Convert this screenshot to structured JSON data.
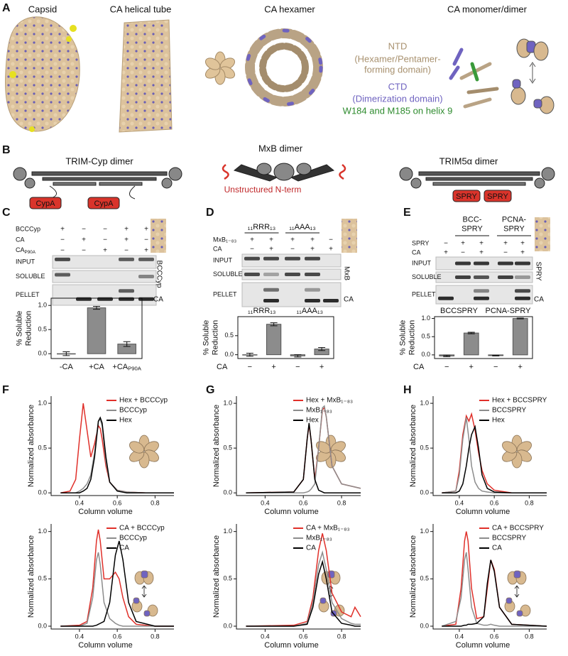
{
  "panels": [
    "A",
    "B",
    "C",
    "D",
    "E",
    "F",
    "G",
    "H"
  ],
  "panel_a": {
    "titles": [
      "Capsid",
      "CA helical tube",
      "CA hexamer",
      "CA monomer/dimer"
    ],
    "ntd": "NTD",
    "ntd_desc": [
      "(Hexamer/Pentamer-",
      "forming domain)"
    ],
    "ctd": "CTD",
    "ctd_desc": "(Dimerization domain)",
    "residues": "W184 and M185 on helix 9"
  },
  "panel_b": {
    "titles": [
      "TRIM-Cyp dimer",
      "MxB dimer",
      "TRIM5α dimer"
    ],
    "cyp_domains": [
      "CypA",
      "CypA"
    ],
    "spry_domains": [
      "SPRY",
      "SPRY"
    ],
    "nterm": "Unstructured N-term"
  },
  "gels": [
    {
      "rows": [
        {
          "label": "BCCCyp",
          "marks": [
            "+",
            "−",
            "−",
            "+",
            "+"
          ]
        },
        {
          "label": "CA",
          "marks": [
            "−",
            "+",
            "−",
            "+",
            "−"
          ]
        },
        {
          "label": {
            "text": "CA",
            "sub": "P90A"
          },
          "marks": [
            "−",
            "−",
            "+",
            "−",
            "+"
          ]
        }
      ],
      "lanes": [
        "INPUT",
        "SOLUBLE",
        "PELLET"
      ],
      "side_labels": [
        "BCCCyp",
        "CA"
      ]
    },
    {
      "headers": [
        "₁₁RRR₁₃",
        "₁₁AAA₁₃"
      ],
      "rows": [
        {
          "label": "MxB₁₋₈₃",
          "marks": [
            "+",
            "+",
            "+",
            "+",
            "−"
          ]
        },
        {
          "label": "CA",
          "marks": [
            "−",
            "+",
            "−",
            "+",
            "+"
          ]
        }
      ],
      "lanes": [
        "INPUT",
        "SOLUBLE",
        "PELLET"
      ],
      "side_labels": [
        "MxB",
        "CA"
      ]
    },
    {
      "headers": [
        [
          "BCC-",
          "SPRY"
        ],
        [
          "PCNA-",
          "SPRY"
        ]
      ],
      "rows": [
        {
          "label": "SPRY",
          "marks": [
            "−",
            "+",
            "+",
            "+",
            "+"
          ]
        },
        {
          "label": "CA",
          "marks": [
            "+",
            "−",
            "+",
            "−",
            "+"
          ]
        }
      ],
      "lanes": [
        "INPUT",
        "SOLUBLE",
        "PELLET"
      ],
      "side_labels": [
        "SPRY",
        "CA"
      ]
    }
  ],
  "chart_data": [
    {
      "type": "bar",
      "ylabel": [
        "% Soluble",
        "Reduction"
      ],
      "categories": [
        "-CA",
        "+CA",
        {
          "text": "+CA",
          "sub": "P90A"
        }
      ],
      "values": [
        0.0,
        0.95,
        0.2
      ],
      "errors": [
        0.04,
        0.03,
        0.05
      ],
      "color": "#8c8c8c",
      "ylim": [
        -0.1,
        1.15
      ],
      "yticks": [
        {
          "value": 0,
          "label": "0.0"
        },
        0.5,
        {
          "value": 1,
          "label": "1.0"
        }
      ]
    },
    {
      "type": "bar",
      "ylabel": [
        "% Soluble",
        "Reduction"
      ],
      "xlabel": "CA",
      "groups": [
        "₁₁RRR₁₃",
        "₁₁AAA₁₃"
      ],
      "categories": [
        "−",
        "+",
        "−",
        "+"
      ],
      "values": [
        0.0,
        0.8,
        -0.03,
        0.15
      ],
      "errors": [
        0.04,
        0.04,
        0.03,
        0.04
      ],
      "color": "#8c8c8c",
      "ylim": [
        -0.1,
        1.0
      ],
      "yticks": [
        {
          "value": 0,
          "label": "0.0"
        },
        0.5
      ]
    },
    {
      "type": "bar",
      "ylabel": [
        "% Soluble",
        "Reduction"
      ],
      "xlabel": "CA",
      "groups": [
        "BCCSPRY",
        "PCNA-SPRY"
      ],
      "categories": [
        "−",
        "+",
        "−",
        "+"
      ],
      "values": [
        -0.03,
        0.6,
        -0.02,
        1.0
      ],
      "errors": [
        0.02,
        0.02,
        0.01,
        0.01
      ],
      "color": "#8c8c8c",
      "ylim": [
        -0.1,
        1.05
      ],
      "yticks": [
        {
          "value": 0,
          "label": "0.0"
        },
        0.5,
        {
          "value": 1,
          "label": "1.0"
        }
      ]
    },
    {
      "type": "line",
      "xlabel": "Column volume",
      "ylabel": "Normalized absorbance",
      "legend": "upper-right",
      "xlim": [
        0.25,
        0.9
      ],
      "xticks": [
        0.4,
        0.6,
        0.8
      ],
      "ylim": [
        -0.03,
        1.08
      ],
      "yticks": [
        {
          "value": 0,
          "label": "0.0"
        },
        0.5,
        {
          "value": 1,
          "label": "1.0"
        }
      ],
      "x": [
        0.3,
        0.35,
        0.38,
        0.4,
        0.42,
        0.44,
        0.46,
        0.48,
        0.5,
        0.51,
        0.52,
        0.54,
        0.56,
        0.6,
        0.65,
        0.75,
        0.9
      ],
      "series": [
        {
          "name": "Hex + BCCCyp",
          "color": "#e0302a",
          "values": [
            0,
            0.02,
            0.15,
            0.6,
            1.0,
            0.7,
            0.4,
            0.55,
            0.75,
            0.72,
            0.6,
            0.3,
            0.12,
            0.03,
            0.01,
            0,
            0
          ]
        },
        {
          "name": "BCCCyp",
          "color": "#8c8c8c",
          "values": [
            0,
            0,
            0,
            0.02,
            0.05,
            0.1,
            0.2,
            0.45,
            0.8,
            0.82,
            0.75,
            0.35,
            0.12,
            0.03,
            0.01,
            0,
            0
          ]
        },
        {
          "name": "Hex",
          "color": "#000000",
          "values": [
            0,
            0,
            0,
            0,
            0.02,
            0.05,
            0.15,
            0.4,
            0.8,
            0.84,
            0.78,
            0.4,
            0.12,
            0.02,
            0,
            0,
            0
          ]
        }
      ]
    },
    {
      "type": "line",
      "xlabel": "Column volume",
      "ylabel": "Normalized absorbance",
      "legend": "upper-right",
      "xlim": [
        0.25,
        0.9
      ],
      "xticks": [
        0.4,
        0.6,
        0.8
      ],
      "ylim": [
        -0.03,
        1.08
      ],
      "yticks": [
        {
          "value": 0,
          "label": "0.0"
        },
        0.5,
        {
          "value": 1,
          "label": "1.0"
        }
      ],
      "x": [
        0.3,
        0.55,
        0.6,
        0.62,
        0.63,
        0.64,
        0.66,
        0.68,
        0.7,
        0.71,
        0.72,
        0.75,
        0.8,
        0.9
      ],
      "series": [
        {
          "name": "Hex + MxB₁₋₈₃",
          "color": "#e0302a",
          "values": [
            0,
            0.01,
            0.15,
            0.6,
            0.76,
            0.6,
            0.15,
            0.5,
            0.93,
            0.95,
            0.85,
            0.3,
            0.1,
            0.05
          ]
        },
        {
          "name": "MxB₁₋₈₃",
          "color": "#8c8c8c",
          "values": [
            0,
            0,
            0,
            0.01,
            0.02,
            0.04,
            0.1,
            0.5,
            0.95,
            0.97,
            0.85,
            0.3,
            0.1,
            0.05
          ]
        },
        {
          "name": "Hex",
          "color": "#000000",
          "values": [
            0,
            0.01,
            0.15,
            0.6,
            0.78,
            0.6,
            0.15,
            0.03,
            0.01,
            0,
            0,
            0,
            0,
            0
          ]
        }
      ]
    },
    {
      "type": "line",
      "xlabel": "Column volume",
      "ylabel": "Normalized absorbance",
      "legend": "upper-right",
      "xlim": [
        0.25,
        0.9
      ],
      "xticks": [
        0.4,
        0.6,
        0.8
      ],
      "ylim": [
        -0.03,
        1.08
      ],
      "yticks": [
        {
          "value": 0,
          "label": "0.0"
        },
        0.5,
        {
          "value": 1,
          "label": "1.0"
        }
      ],
      "x": [
        0.3,
        0.38,
        0.4,
        0.42,
        0.44,
        0.455,
        0.47,
        0.49,
        0.51,
        0.53,
        0.56,
        0.6,
        0.7,
        0.9
      ],
      "series": [
        {
          "name": "Hex + BCCSPRY",
          "color": "#e0302a",
          "values": [
            0,
            0.02,
            0.25,
            0.65,
            0.86,
            0.8,
            0.88,
            0.7,
            0.45,
            0.25,
            0.1,
            0.03,
            0,
            0
          ]
        },
        {
          "name": "BCCSPRY",
          "color": "#8c8c8c",
          "values": [
            0,
            0.02,
            0.2,
            0.6,
            0.84,
            0.6,
            0.3,
            0.12,
            0.05,
            0.02,
            0.01,
            0,
            0,
            0
          ]
        },
        {
          "name": "Hex",
          "color": "#000000",
          "values": [
            0,
            0,
            0.02,
            0.1,
            0.3,
            0.5,
            0.65,
            0.74,
            0.5,
            0.2,
            0.05,
            0.01,
            0,
            0
          ]
        }
      ]
    },
    {
      "type": "line",
      "xlabel": "Column volume",
      "ylabel": "Normalized absorbance",
      "legend": "upper-right",
      "xlim": [
        0.25,
        0.9
      ],
      "xticks": [
        0.4,
        0.6,
        0.8
      ],
      "ylim": [
        -0.03,
        1.08
      ],
      "yticks": [
        {
          "value": 0,
          "label": "0.0"
        },
        0.5,
        {
          "value": 1,
          "label": "1.0"
        }
      ],
      "x": [
        0.3,
        0.4,
        0.44,
        0.47,
        0.49,
        0.5,
        0.51,
        0.53,
        0.56,
        0.59,
        0.61,
        0.63,
        0.66,
        0.7,
        0.8,
        0.9
      ],
      "series": [
        {
          "name": "CA + BCCCyp",
          "color": "#e0302a",
          "values": [
            0,
            0.01,
            0.05,
            0.4,
            0.9,
            1.02,
            0.9,
            0.5,
            0.5,
            0.57,
            0.5,
            0.3,
            0.1,
            0.02,
            0,
            0
          ]
        },
        {
          "name": "BCCCyp",
          "color": "#8c8c8c",
          "values": [
            0,
            0,
            0.03,
            0.3,
            0.7,
            0.78,
            0.65,
            0.25,
            0.08,
            0.03,
            0.01,
            0,
            0,
            0,
            0,
            0
          ]
        },
        {
          "name": "CA",
          "color": "#000000",
          "values": [
            0,
            0,
            0,
            0,
            0.01,
            0.02,
            0.03,
            0.05,
            0.25,
            0.75,
            0.9,
            0.7,
            0.25,
            0.05,
            0,
            0
          ]
        }
      ]
    },
    {
      "type": "line",
      "xlabel": "Column volume",
      "ylabel": "Normalized absorbance",
      "legend": "upper-right",
      "xlim": [
        0.25,
        0.9
      ],
      "xticks": [
        0.4,
        0.6,
        0.8
      ],
      "ylim": [
        -0.03,
        1.08
      ],
      "yticks": [
        {
          "value": 0,
          "label": "0.0"
        },
        0.5,
        {
          "value": 1,
          "label": "1.0"
        }
      ],
      "x": [
        0.3,
        0.55,
        0.62,
        0.65,
        0.68,
        0.7,
        0.72,
        0.75,
        0.8,
        0.85,
        0.87,
        0.9
      ],
      "series": [
        {
          "name": "CA + MxB₁₋₈₃",
          "color": "#e0302a",
          "values": [
            0,
            0.01,
            0.05,
            0.3,
            0.8,
            0.98,
            0.8,
            0.35,
            0.15,
            0.1,
            0.2,
            0.1
          ]
        },
        {
          "name": "MxB₁₋₈₃",
          "color": "#8c8c8c",
          "values": [
            0,
            0,
            0.03,
            0.25,
            0.65,
            0.78,
            0.6,
            0.25,
            0.08,
            0.03,
            0.02,
            0.02
          ]
        },
        {
          "name": "CA",
          "color": "#000000",
          "values": [
            0,
            0,
            0.02,
            0.2,
            0.55,
            0.68,
            0.5,
            0.15,
            0.03,
            0.01,
            0,
            0
          ]
        }
      ]
    },
    {
      "type": "line",
      "xlabel": "Column volume",
      "ylabel": "Normalized absorbance",
      "legend": "upper-right",
      "xlim": [
        0.25,
        0.9
      ],
      "xticks": [
        0.4,
        0.6,
        0.8
      ],
      "ylim": [
        -0.03,
        1.08
      ],
      "yticks": [
        {
          "value": 0,
          "label": "0.0"
        },
        0.5,
        {
          "value": 1,
          "label": "1.0"
        }
      ],
      "x": [
        0.3,
        0.38,
        0.41,
        0.43,
        0.44,
        0.45,
        0.47,
        0.5,
        0.54,
        0.56,
        0.58,
        0.6,
        0.63,
        0.7,
        0.9
      ],
      "series": [
        {
          "name": "CA + BCCSPRY",
          "color": "#e0302a",
          "values": [
            0,
            0.02,
            0.4,
            0.9,
            1.0,
            0.9,
            0.4,
            0.08,
            0.1,
            0.4,
            0.7,
            0.6,
            0.2,
            0.02,
            0
          ]
        },
        {
          "name": "BCCSPRY",
          "color": "#8c8c8c",
          "values": [
            0,
            0.05,
            0.3,
            0.7,
            0.78,
            0.6,
            0.2,
            0.03,
            0.01,
            0.01,
            0.02,
            0.01,
            0,
            0,
            0
          ]
        },
        {
          "name": "CA",
          "color": "#000000",
          "values": [
            0,
            0,
            0,
            0.01,
            0.01,
            0.02,
            0.02,
            0.03,
            0.1,
            0.45,
            0.7,
            0.58,
            0.2,
            0.02,
            0
          ]
        }
      ]
    }
  ]
}
